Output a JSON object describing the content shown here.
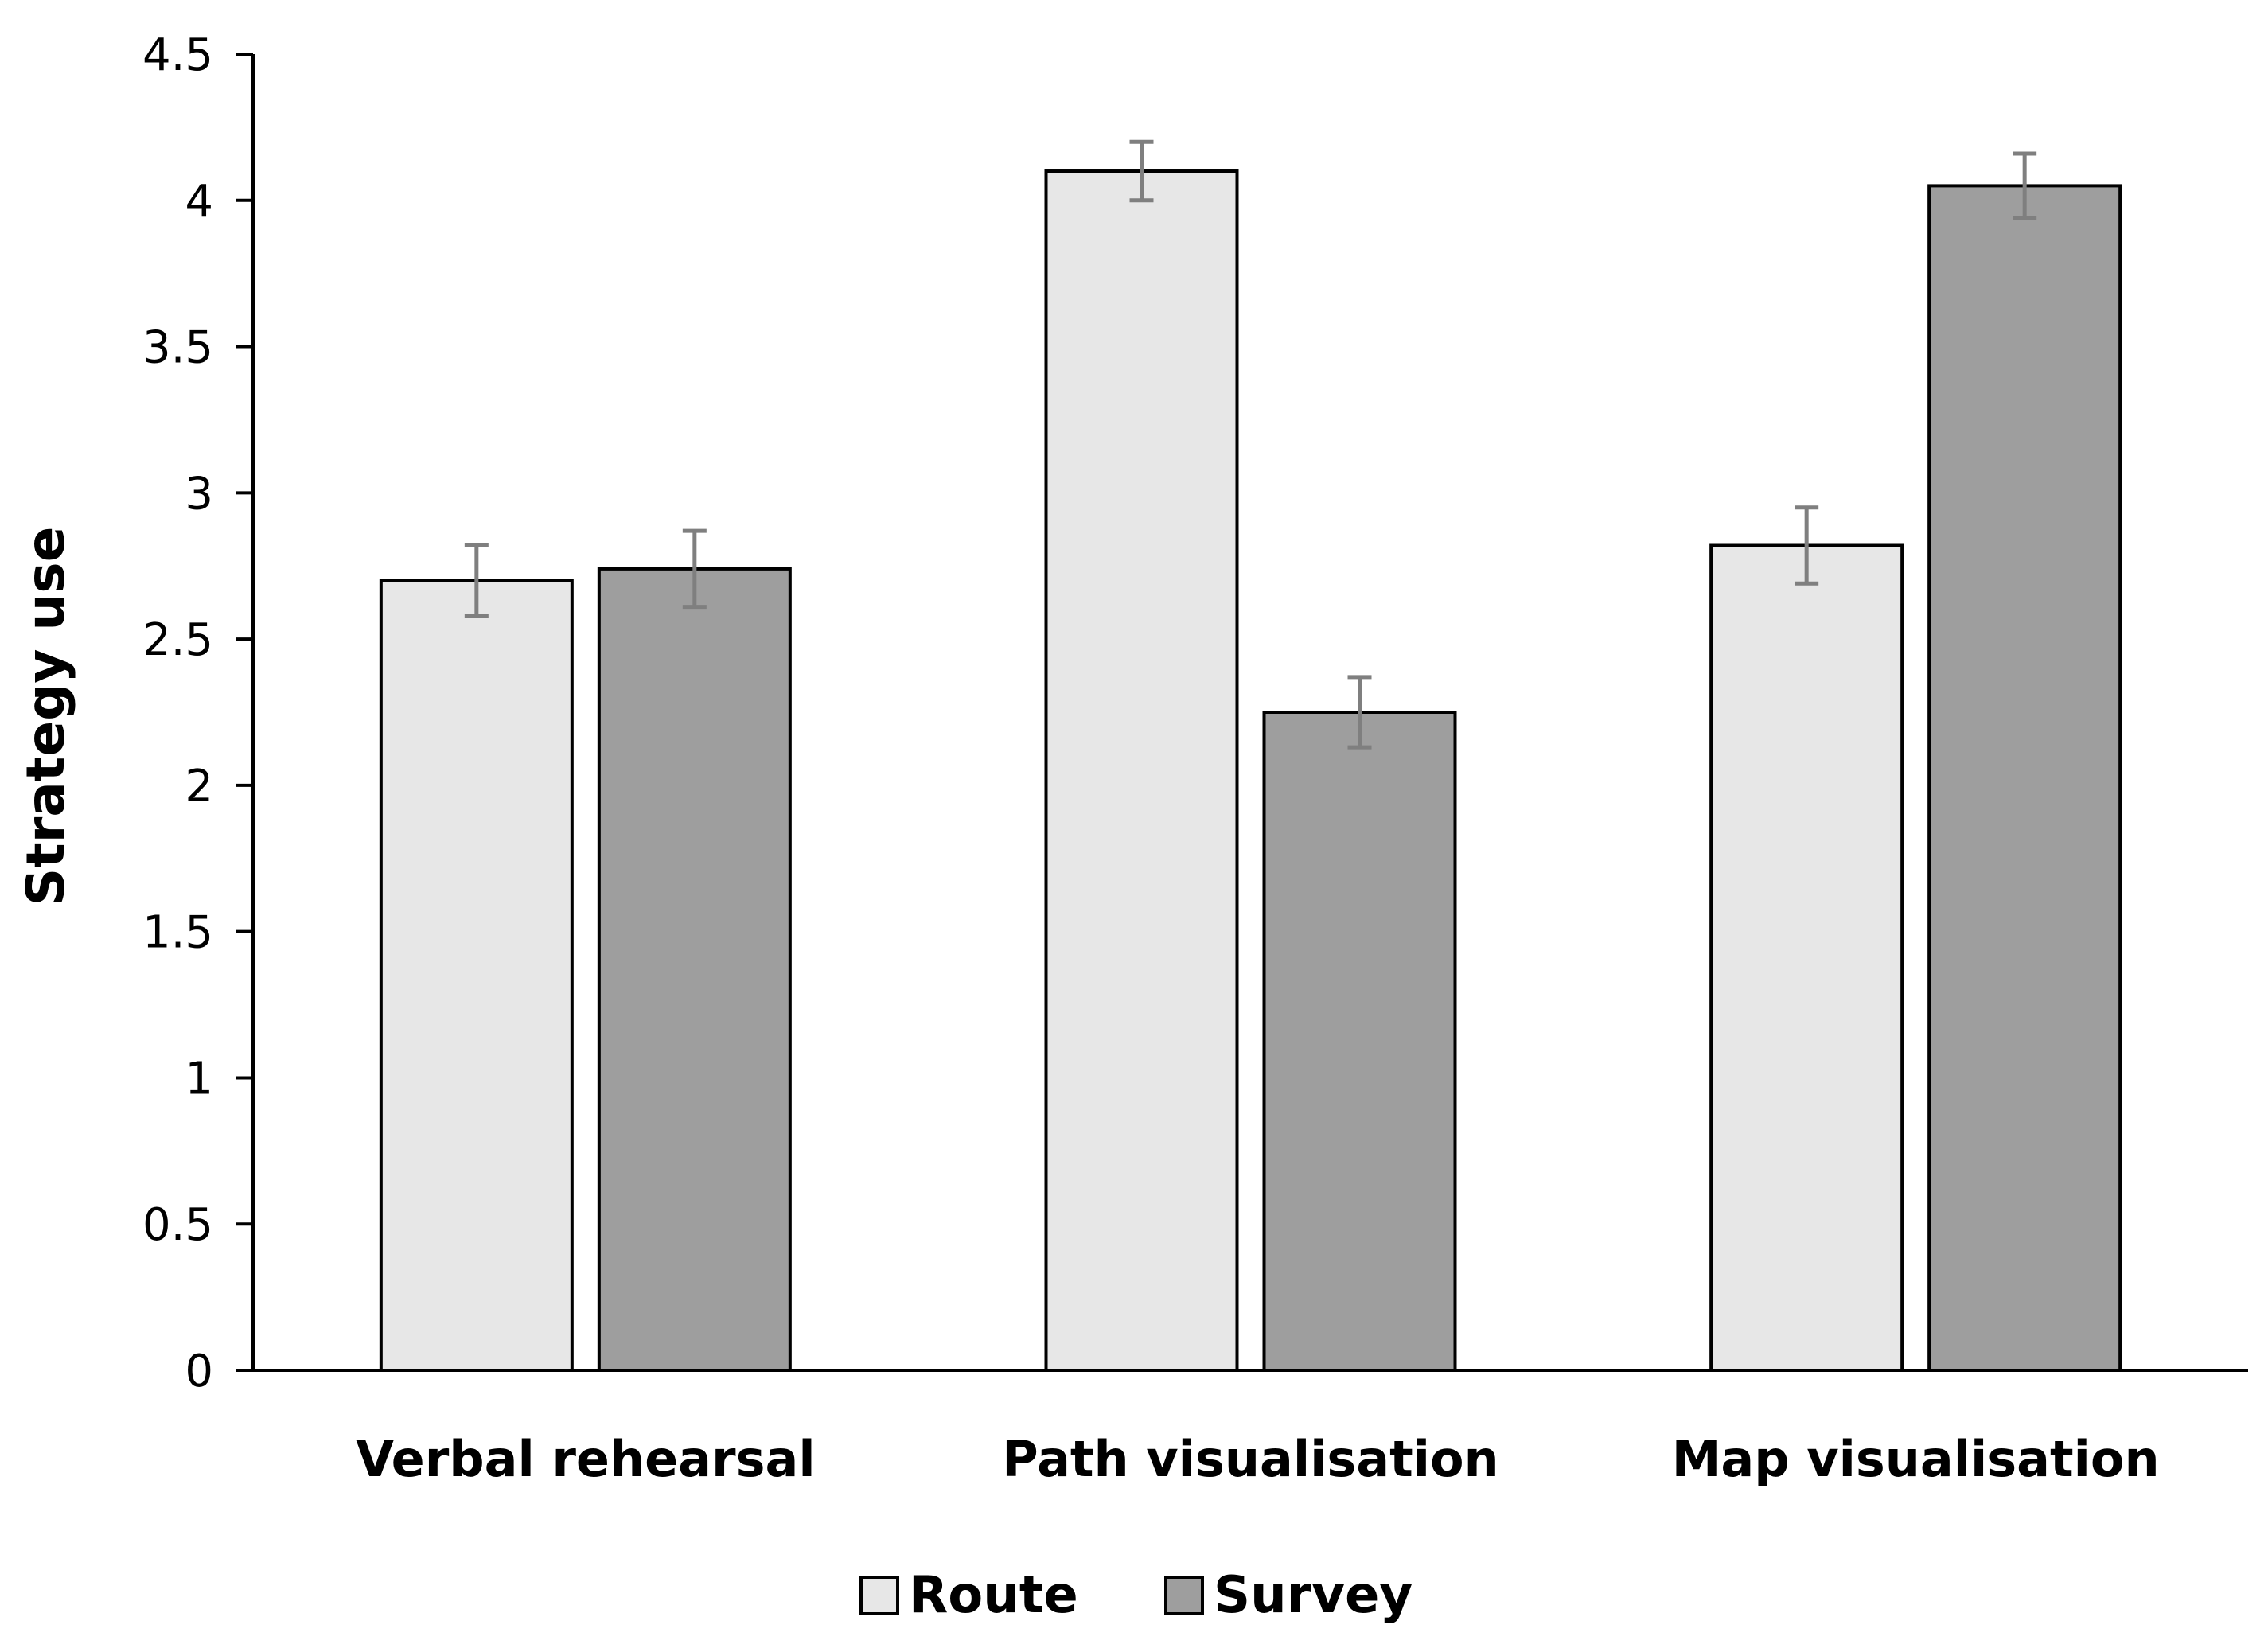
{
  "chart_data": {
    "type": "bar",
    "title": "",
    "xlabel": "",
    "ylabel": "Strategy use",
    "ylim": [
      0,
      4.5
    ],
    "yticks": [
      "0",
      "0.5",
      "1",
      "1.5",
      "2",
      "2.5",
      "3",
      "3.5",
      "4",
      "4.5"
    ],
    "grid": false,
    "legend_position": "bottom",
    "categories": [
      "Verbal rehearsal",
      "Path visualisation",
      "Map visualisation"
    ],
    "series": [
      {
        "name": "Route",
        "color": "#e7e7e7",
        "values": [
          2.7,
          4.1,
          2.82
        ],
        "errors": [
          0.12,
          0.1,
          0.13
        ]
      },
      {
        "name": "Survey",
        "color": "#9e9e9e",
        "values": [
          2.74,
          2.25,
          4.05
        ],
        "errors": [
          0.13,
          0.12,
          0.11
        ]
      }
    ]
  }
}
